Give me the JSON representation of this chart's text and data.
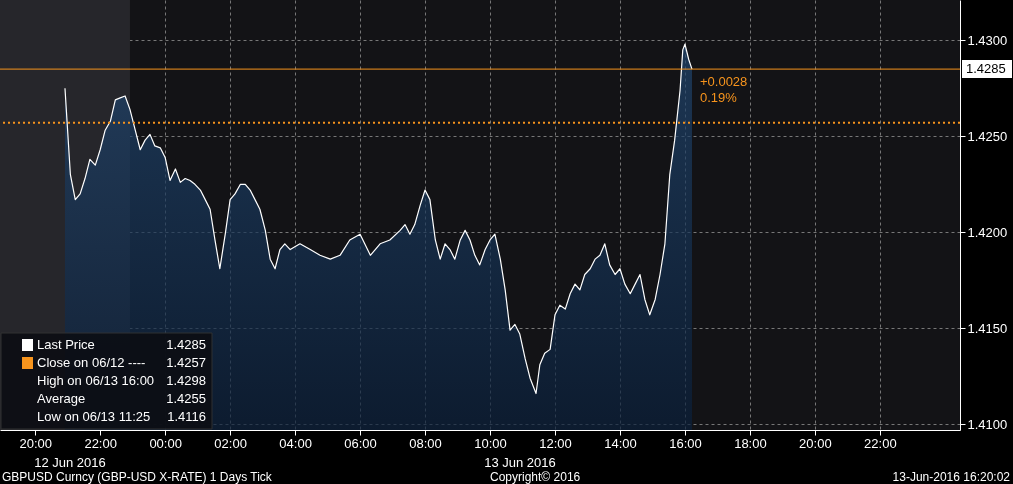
{
  "chart_data": {
    "type": "area",
    "x": [
      "2016-06-12T20:55",
      "2016-06-12T21:05",
      "2016-06-12T21:14",
      "2016-06-12T21:23",
      "2016-06-12T21:32",
      "2016-06-12T21:41",
      "2016-06-12T21:51",
      "2016-06-12T22:00",
      "2016-06-12T22:09",
      "2016-06-12T22:19",
      "2016-06-12T22:28",
      "2016-06-12T22:37",
      "2016-06-12T22:46",
      "2016-06-12T22:55",
      "2016-06-12T23:05",
      "2016-06-12T23:14",
      "2016-06-12T23:23",
      "2016-06-12T23:32",
      "2016-06-12T23:41",
      "2016-06-12T23:51",
      "2016-06-13T00:00",
      "2016-06-13T00:09",
      "2016-06-13T00:19",
      "2016-06-13T00:28",
      "2016-06-13T00:37",
      "2016-06-13T00:46",
      "2016-06-13T00:55",
      "2016-06-13T01:05",
      "2016-06-13T01:14",
      "2016-06-13T01:23",
      "2016-06-13T01:32",
      "2016-06-13T01:41",
      "2016-06-13T01:51",
      "2016-06-13T02:00",
      "2016-06-13T02:09",
      "2016-06-13T02:19",
      "2016-06-13T02:28",
      "2016-06-13T02:37",
      "2016-06-13T02:46",
      "2016-06-13T02:55",
      "2016-06-13T03:05",
      "2016-06-13T03:14",
      "2016-06-13T03:23",
      "2016-06-13T03:32",
      "2016-06-13T03:41",
      "2016-06-13T03:51",
      "2016-06-13T04:09",
      "2016-06-13T04:28",
      "2016-06-13T04:46",
      "2016-06-13T05:05",
      "2016-06-13T05:23",
      "2016-06-13T05:41",
      "2016-06-13T06:00",
      "2016-06-13T06:19",
      "2016-06-13T06:37",
      "2016-06-13T06:55",
      "2016-06-13T07:14",
      "2016-06-13T07:23",
      "2016-06-13T07:32",
      "2016-06-13T07:41",
      "2016-06-13T07:51",
      "2016-06-13T08:00",
      "2016-06-13T08:09",
      "2016-06-13T08:19",
      "2016-06-13T08:28",
      "2016-06-13T08:37",
      "2016-06-13T08:46",
      "2016-06-13T08:55",
      "2016-06-13T09:05",
      "2016-06-13T09:14",
      "2016-06-13T09:23",
      "2016-06-13T09:32",
      "2016-06-13T09:41",
      "2016-06-13T09:51",
      "2016-06-13T10:00",
      "2016-06-13T10:09",
      "2016-06-13T10:19",
      "2016-06-13T10:28",
      "2016-06-13T10:37",
      "2016-06-13T10:46",
      "2016-06-13T10:55",
      "2016-06-13T11:05",
      "2016-06-13T11:14",
      "2016-06-13T11:25",
      "2016-06-13T11:32",
      "2016-06-13T11:41",
      "2016-06-13T11:51",
      "2016-06-13T12:00",
      "2016-06-13T12:09",
      "2016-06-13T12:19",
      "2016-06-13T12:28",
      "2016-06-13T12:37",
      "2016-06-13T12:46",
      "2016-06-13T12:55",
      "2016-06-13T13:05",
      "2016-06-13T13:14",
      "2016-06-13T13:23",
      "2016-06-13T13:32",
      "2016-06-13T13:41",
      "2016-06-13T13:51",
      "2016-06-13T14:00",
      "2016-06-13T14:09",
      "2016-06-13T14:19",
      "2016-06-13T14:28",
      "2016-06-13T14:37",
      "2016-06-13T14:46",
      "2016-06-13T14:55",
      "2016-06-13T15:05",
      "2016-06-13T15:14",
      "2016-06-13T15:23",
      "2016-06-13T15:32",
      "2016-06-13T15:41",
      "2016-06-13T15:51",
      "2016-06-13T15:56",
      "2016-06-13T16:00",
      "2016-06-13T16:07",
      "2016-06-13T16:13"
    ],
    "series": [
      {
        "name": "Last Price",
        "color": "#ffffff",
        "values": [
          1.4275,
          1.423,
          1.4217,
          1.422,
          1.4228,
          1.4238,
          1.4235,
          1.4243,
          1.4253,
          1.4258,
          1.4269,
          1.427,
          1.4271,
          1.4264,
          1.4253,
          1.4243,
          1.4248,
          1.4251,
          1.4245,
          1.4244,
          1.4239,
          1.4227,
          1.4233,
          1.4226,
          1.4228,
          1.4227,
          1.4225,
          1.4222,
          1.4217,
          1.4212,
          1.4196,
          1.4181,
          1.4199,
          1.4217,
          1.422,
          1.4225,
          1.4225,
          1.4222,
          1.4217,
          1.4212,
          1.4201,
          1.4186,
          1.4181,
          1.4191,
          1.4194,
          1.4191,
          1.4194,
          1.4191,
          1.4188,
          1.4186,
          1.4188,
          1.4196,
          1.4199,
          1.4188,
          1.4194,
          1.4196,
          1.4201,
          1.4204,
          1.4199,
          1.4204,
          1.4214,
          1.4222,
          1.4217,
          1.4196,
          1.4186,
          1.4194,
          1.4191,
          1.4186,
          1.4196,
          1.4201,
          1.4196,
          1.4188,
          1.4183,
          1.4191,
          1.4196,
          1.4199,
          1.4186,
          1.417,
          1.4149,
          1.4152,
          1.4147,
          1.4134,
          1.4124,
          1.4116,
          1.4131,
          1.4137,
          1.4139,
          1.4157,
          1.4162,
          1.416,
          1.4168,
          1.4173,
          1.417,
          1.4178,
          1.4181,
          1.4186,
          1.4188,
          1.4194,
          1.4183,
          1.4178,
          1.4181,
          1.4173,
          1.4168,
          1.4173,
          1.4178,
          1.4165,
          1.4157,
          1.4165,
          1.4178,
          1.4194,
          1.423,
          1.4248,
          1.4274,
          1.4295,
          1.4298,
          1.429,
          1.4285
        ]
      }
    ],
    "xlim": [
      "2016-06-12T18:55",
      "2016-06-14T00:28"
    ],
    "xticks": [
      {
        "value": "2016-06-12T20:00",
        "label": "20:00"
      },
      {
        "value": "2016-06-12T22:00",
        "label": "22:00"
      },
      {
        "value": "2016-06-13T00:00",
        "label": "00:00"
      },
      {
        "value": "2016-06-13T02:00",
        "label": "02:00"
      },
      {
        "value": "2016-06-13T04:00",
        "label": "04:00"
      },
      {
        "value": "2016-06-13T06:00",
        "label": "06:00"
      },
      {
        "value": "2016-06-13T08:00",
        "label": "08:00"
      },
      {
        "value": "2016-06-13T10:00",
        "label": "10:00"
      },
      {
        "value": "2016-06-13T12:00",
        "label": "12:00"
      },
      {
        "value": "2016-06-13T14:00",
        "label": "14:00"
      },
      {
        "value": "2016-06-13T16:00",
        "label": "16:00"
      },
      {
        "value": "2016-06-13T18:00",
        "label": "18:00"
      },
      {
        "value": "2016-06-13T20:00",
        "label": "20:00"
      },
      {
        "value": "2016-06-13T22:00",
        "label": "22:00"
      }
    ],
    "ylim": [
      1.4097,
      1.4321
    ],
    "yticks": [
      {
        "value": 1.41,
        "label": "1.4100"
      },
      {
        "value": 1.415,
        "label": "1.4150"
      },
      {
        "value": 1.42,
        "label": "1.4200"
      },
      {
        "value": 1.425,
        "label": "1.4250"
      },
      {
        "value": 1.43,
        "label": "1.4300"
      }
    ],
    "grid": true,
    "legend": "bottom left",
    "bands": [
      {
        "axis": "x",
        "from": "2016-06-12T18:55",
        "to": "2016-06-12T22:55",
        "color": "#26262b"
      }
    ],
    "ref_lines": [
      {
        "axis": "y",
        "value": 1.4257,
        "label": "Close on 06/12 ----",
        "color": "#f7941d",
        "line_style": "dotted"
      },
      {
        "axis": "y",
        "value": 1.4285,
        "label": "1.4285",
        "color": "#f7941d",
        "line_style": "solid"
      }
    ],
    "annotations": [
      {
        "text": "+0.0028",
        "x": "2016-06-13T16:13",
        "y": 1.4285
      },
      {
        "text": "0.19%",
        "x": "2016-06-13T16:13",
        "y": 1.4285
      },
      "1.4285",
      "1.4257",
      "High on 06/13 16:00",
      "1.4298",
      "Average",
      "1.4255",
      "Low on 06/13 11:25",
      "1.4116",
      "12 Jun 2016",
      "13 Jun 2016",
      "GBPUSD Curncy (GBP-USD X-RATE) 1 Days  Tick",
      "Copyright© 2016",
      "13-Jun-2016 16:20:02"
    ]
  }
}
